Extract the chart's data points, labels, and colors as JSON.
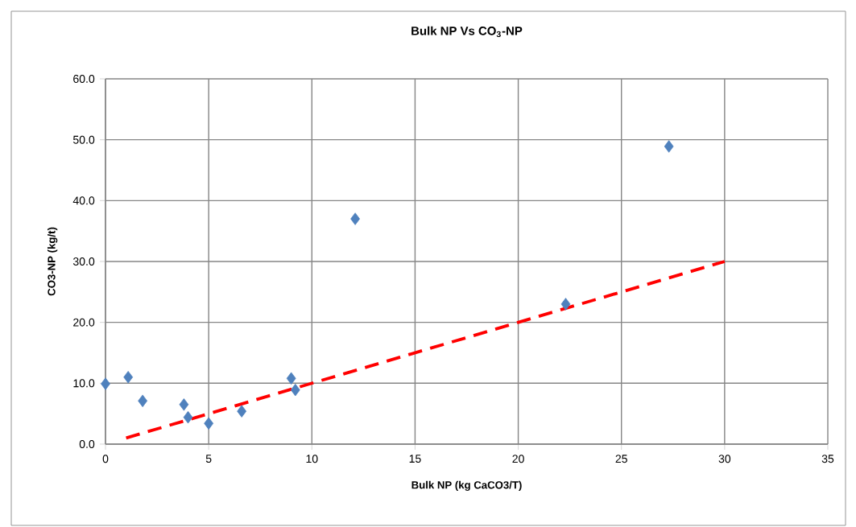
{
  "chart_data": {
    "type": "scatter",
    "title": "Bulk NP Vs CO$_{3}$-NP",
    "xlabel": "Bulk NP (kg CaCO3/T)",
    "ylabel": "CO3-NP (kg/t)",
    "series": [
      {
        "color": "#4f81bd",
        "marker": "diamond",
        "x": [
          0,
          1.1,
          1.8,
          3.8,
          4.0,
          5.0,
          6.6,
          9.0,
          9.2,
          12.1,
          22.3,
          27.3
        ],
        "values": [
          9.9,
          11.0,
          7.1,
          6.5,
          4.4,
          3.4,
          5.4,
          10.8,
          8.9,
          37.0,
          23.0,
          48.9
        ]
      },
      {
        "type": "line",
        "color": "#ff0000",
        "marker": "none",
        "line_style": "dashed",
        "x": [
          1,
          30
        ],
        "values": [
          1,
          30
        ]
      }
    ],
    "xlim": [
      0,
      35
    ],
    "ylim": [
      0,
      60
    ],
    "xticks": [
      0,
      5,
      10,
      15,
      20,
      25,
      30,
      35
    ],
    "yticks": [
      {
        "value": 0,
        "label": "0.0"
      },
      {
        "value": 10,
        "label": "10.0"
      },
      {
        "value": 20,
        "label": "20.0"
      },
      {
        "value": 30,
        "label": "30.0"
      },
      {
        "value": 40,
        "label": "40.0"
      },
      {
        "value": 50,
        "label": "50.0"
      },
      {
        "value": 60,
        "label": "60.0"
      }
    ],
    "grid": true
  }
}
